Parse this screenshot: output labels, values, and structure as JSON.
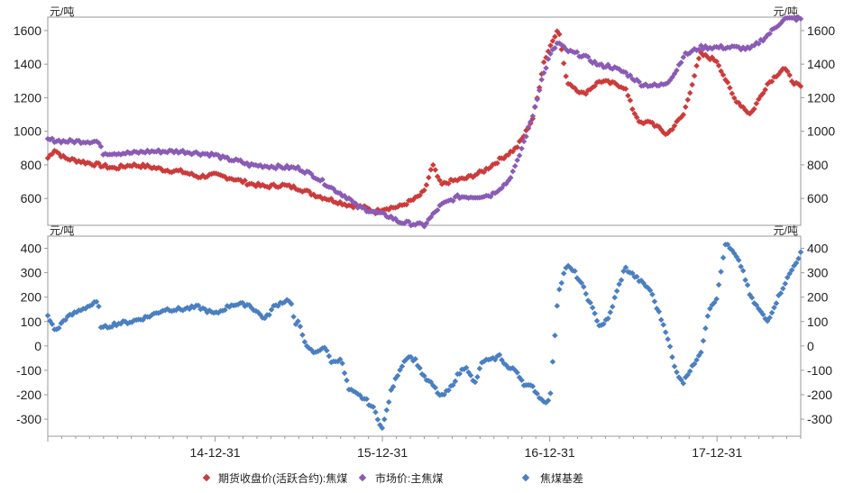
{
  "chart_data": [
    {
      "type": "scatter",
      "panel": "upper",
      "unit_left": "元/吨",
      "unit_right": "元/吨",
      "ylim": [
        440,
        1680
      ],
      "y_ticks": [
        600,
        800,
        1000,
        1200,
        1400,
        1600
      ],
      "x_ticks": [
        "14-12-31",
        "15-12-31",
        "16-12-31",
        "17-12-31"
      ],
      "series": [
        {
          "name": "期货收盘价(活跃合约):焦煤",
          "color": "#cc3b3b",
          "x": [
            2014.0,
            2014.04,
            2014.1,
            2014.2,
            2014.3,
            2014.4,
            2014.5,
            2014.6,
            2014.7,
            2014.8,
            2014.9,
            2015.0,
            2015.1,
            2015.2,
            2015.3,
            2015.4,
            2015.5,
            2015.6,
            2015.7,
            2015.8,
            2015.88,
            2015.96,
            2016.0,
            2016.1,
            2016.2,
            2016.25,
            2016.3,
            2016.35,
            2016.4,
            2016.5,
            2016.6,
            2016.7,
            2016.8,
            2016.85,
            2016.9,
            2016.93,
            2016.96,
            2017.0,
            2017.05,
            2017.1,
            2017.2,
            2017.3,
            2017.4,
            2017.45,
            2017.5,
            2017.55,
            2017.6,
            2017.7,
            2017.8,
            2017.85,
            2017.9,
            2018.0,
            2018.1,
            2018.2,
            2018.3,
            2018.4,
            2018.45,
            2018.5
          ],
          "y": [
            840,
            890,
            840,
            820,
            800,
            780,
            800,
            790,
            770,
            760,
            730,
            740,
            720,
            690,
            670,
            680,
            660,
            620,
            590,
            560,
            550,
            520,
            540,
            550,
            600,
            640,
            800,
            680,
            700,
            720,
            760,
            830,
            900,
            980,
            1080,
            1220,
            1400,
            1500,
            1620,
            1300,
            1220,
            1300,
            1280,
            1260,
            1120,
            1040,
            1060,
            980,
            1100,
            1280,
            1460,
            1420,
            1200,
            1100,
            1280,
            1380,
            1300,
            1260
          ]
        },
        {
          "name": "市场价:主焦煤",
          "color": "#8a5bb5",
          "x": [
            2014.0,
            2014.1,
            2014.3,
            2014.33,
            2014.5,
            2014.6,
            2014.8,
            2015.0,
            2015.05,
            2015.15,
            2015.2,
            2015.35,
            2015.5,
            2015.6,
            2015.7,
            2015.8,
            2015.85,
            2015.95,
            2016.05,
            2016.1,
            2016.25,
            2016.3,
            2016.35,
            2016.45,
            2016.55,
            2016.65,
            2016.75,
            2016.8,
            2016.85,
            2016.9,
            2016.95,
            2017.0,
            2017.05,
            2017.1,
            2017.2,
            2017.3,
            2017.35,
            2017.45,
            2017.55,
            2017.65,
            2017.7,
            2017.75,
            2017.8,
            2017.9,
            2018.1,
            2018.2,
            2018.3,
            2018.4,
            2018.5
          ],
          "y": [
            950,
            940,
            940,
            870,
            870,
            880,
            880,
            860,
            840,
            820,
            800,
            790,
            780,
            730,
            660,
            600,
            550,
            520,
            490,
            460,
            440,
            500,
            560,
            610,
            610,
            620,
            700,
            800,
            950,
            1100,
            1300,
            1450,
            1530,
            1480,
            1450,
            1390,
            1390,
            1350,
            1280,
            1270,
            1290,
            1350,
            1450,
            1500,
            1500,
            1490,
            1570,
            1670,
            1670
          ]
        }
      ]
    },
    {
      "type": "scatter",
      "panel": "lower",
      "unit_left": "元/吨",
      "unit_right": "元/吨",
      "ylim": [
        -370,
        450
      ],
      "y_ticks": [
        -300,
        -200,
        -100,
        0,
        100,
        200,
        300,
        400
      ],
      "x_ticks": [
        "14-12-31",
        "15-12-31",
        "16-12-31",
        "17-12-31"
      ],
      "series": [
        {
          "name": "焦煤基差",
          "color": "#4a7fc1",
          "x": [
            2014.0,
            2014.05,
            2014.1,
            2014.15,
            2014.2,
            2014.3,
            2014.32,
            2014.4,
            2014.5,
            2014.6,
            2014.7,
            2014.8,
            2014.9,
            2015.0,
            2015.1,
            2015.2,
            2015.3,
            2015.35,
            2015.4,
            2015.45,
            2015.48,
            2015.5,
            2015.55,
            2015.6,
            2015.65,
            2015.7,
            2015.75,
            2015.8,
            2015.85,
            2015.9,
            2015.95,
            2016.0,
            2016.05,
            2016.1,
            2016.15,
            2016.2,
            2016.25,
            2016.3,
            2016.35,
            2016.4,
            2016.45,
            2016.5,
            2016.55,
            2016.6,
            2016.65,
            2016.7,
            2016.75,
            2016.8,
            2016.85,
            2016.9,
            2016.95,
            2017.0,
            2017.05,
            2017.1,
            2017.15,
            2017.2,
            2017.3,
            2017.35,
            2017.4,
            2017.45,
            2017.5,
            2017.6,
            2017.7,
            2017.75,
            2017.8,
            2017.85,
            2017.9,
            2017.95,
            2018.0,
            2018.05,
            2018.1,
            2018.15,
            2018.2,
            2018.3,
            2018.4,
            2018.5
          ],
          "y": [
            120,
            60,
            110,
            130,
            150,
            180,
            70,
            90,
            100,
            120,
            150,
            150,
            160,
            130,
            170,
            170,
            110,
            160,
            180,
            190,
            80,
            100,
            -10,
            -30,
            0,
            -70,
            -50,
            -180,
            -200,
            -220,
            -260,
            -340,
            -190,
            -100,
            -40,
            -60,
            -130,
            -160,
            -210,
            -180,
            -120,
            -80,
            -160,
            -60,
            -60,
            -40,
            -90,
            -100,
            -160,
            -170,
            -220,
            -230,
            220,
            330,
            300,
            240,
            80,
            110,
            220,
            320,
            290,
            230,
            50,
            -100,
            -150,
            -80,
            -40,
            150,
            200,
            420,
            380,
            320,
            200,
            100,
            250,
            380
          ]
        }
      ]
    }
  ],
  "legend": [
    {
      "label": "期货收盘价(活跃合约):焦煤",
      "color": "#cc3b3b"
    },
    {
      "label": "市场价:主焦煤",
      "color": "#8a5bb5"
    },
    {
      "label": "焦煤基差",
      "color": "#4a7fc1"
    }
  ]
}
